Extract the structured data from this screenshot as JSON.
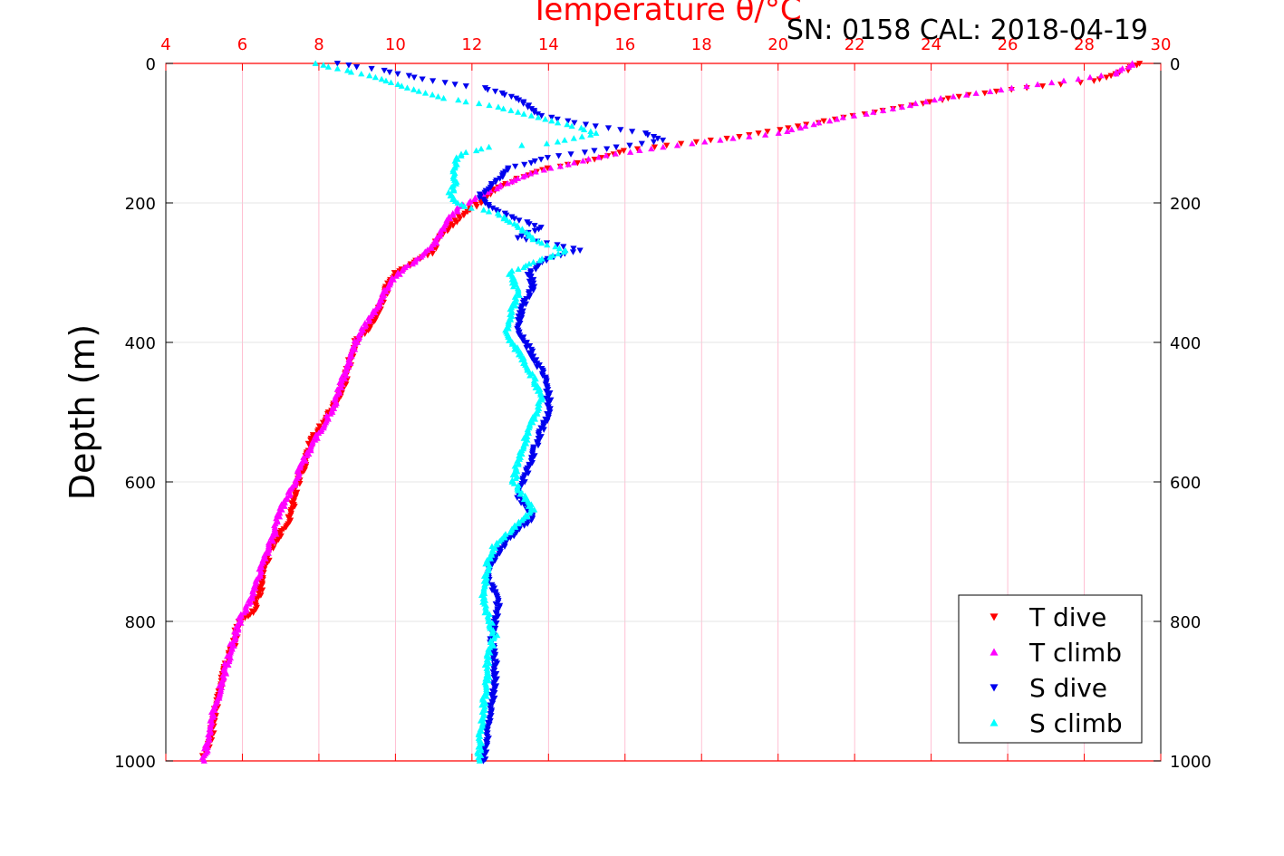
{
  "title": "Temperature θ/°C",
  "subtitle": "SN: 0158  CAL: 2018-04-19",
  "ylabel": "Depth (m)",
  "colors": {
    "axis_top": "#ff0000",
    "grid": "#dddddd",
    "grid_top": "#ffb0c8"
  },
  "chart_data": {
    "type": "scatter",
    "title": "Temperature θ/°C",
    "xlabel": "",
    "ylabel": "Depth (m)",
    "xlim": [
      4,
      30
    ],
    "ylim": [
      1000,
      0
    ],
    "x_ticks": [
      "4",
      "6",
      "8",
      "10",
      "12",
      "14",
      "16",
      "18",
      "20",
      "22",
      "24",
      "26",
      "28",
      "30"
    ],
    "y_ticks": [
      "0",
      "200",
      "400",
      "600",
      "800",
      "1000"
    ],
    "grid": true,
    "legend_position": "bottom-right",
    "series": [
      {
        "name": "T dive",
        "color": "#ff0000",
        "marker": "triangle-down",
        "points": [
          [
            29.4,
            0
          ],
          [
            29.1,
            10
          ],
          [
            28.3,
            25
          ],
          [
            26.5,
            35
          ],
          [
            25.0,
            45
          ],
          [
            23.5,
            60
          ],
          [
            22.0,
            75
          ],
          [
            20.5,
            90
          ],
          [
            19.0,
            105
          ],
          [
            17.5,
            115
          ],
          [
            16.0,
            125
          ],
          [
            15.0,
            140
          ],
          [
            14.0,
            150
          ],
          [
            13.2,
            165
          ],
          [
            12.6,
            180
          ],
          [
            12.2,
            200
          ],
          [
            11.8,
            215
          ],
          [
            11.4,
            235
          ],
          [
            11.1,
            255
          ],
          [
            11.0,
            270
          ],
          [
            10.5,
            285
          ],
          [
            10.0,
            300
          ],
          [
            9.8,
            320
          ],
          [
            9.6,
            350
          ],
          [
            9.3,
            380
          ],
          [
            9.0,
            395
          ],
          [
            8.8,
            430
          ],
          [
            8.6,
            470
          ],
          [
            8.2,
            510
          ],
          [
            7.8,
            540
          ],
          [
            7.6,
            580
          ],
          [
            7.4,
            610
          ],
          [
            7.3,
            640
          ],
          [
            7.2,
            660
          ],
          [
            6.8,
            690
          ],
          [
            6.6,
            720
          ],
          [
            6.5,
            750
          ],
          [
            6.3,
            785
          ],
          [
            5.9,
            800
          ],
          [
            5.8,
            830
          ],
          [
            5.6,
            860
          ],
          [
            5.4,
            900
          ],
          [
            5.3,
            930
          ],
          [
            5.2,
            960
          ],
          [
            5.0,
            995
          ]
        ]
      },
      {
        "name": "T climb",
        "color": "#ff00ff",
        "marker": "triangle-up",
        "points": [
          [
            29.3,
            0
          ],
          [
            28.8,
            15
          ],
          [
            27.5,
            25
          ],
          [
            25.8,
            38
          ],
          [
            24.3,
            50
          ],
          [
            23.0,
            65
          ],
          [
            21.5,
            80
          ],
          [
            20.0,
            100
          ],
          [
            18.5,
            110
          ],
          [
            17.0,
            120
          ],
          [
            15.5,
            132
          ],
          [
            14.5,
            145
          ],
          [
            13.5,
            158
          ],
          [
            12.9,
            172
          ],
          [
            12.2,
            190
          ],
          [
            11.7,
            205
          ],
          [
            11.3,
            230
          ],
          [
            11.0,
            260
          ],
          [
            10.6,
            280
          ],
          [
            10.0,
            305
          ],
          [
            9.7,
            330
          ],
          [
            9.4,
            360
          ],
          [
            9.0,
            395
          ],
          [
            8.7,
            440
          ],
          [
            8.4,
            490
          ],
          [
            8.0,
            530
          ],
          [
            7.6,
            570
          ],
          [
            7.3,
            610
          ],
          [
            7.0,
            640
          ],
          [
            6.8,
            680
          ],
          [
            6.5,
            720
          ],
          [
            6.3,
            760
          ],
          [
            6.0,
            790
          ],
          [
            5.8,
            820
          ],
          [
            5.6,
            860
          ],
          [
            5.4,
            900
          ],
          [
            5.2,
            940
          ],
          [
            5.0,
            1000
          ]
        ]
      },
      {
        "name": "S dive",
        "color": "#0000ee",
        "marker": "triangle-down",
        "points": [
          [
            8.5,
            0
          ],
          [
            9.0,
            5
          ],
          [
            9.7,
            10
          ],
          [
            10.5,
            20
          ],
          [
            11.5,
            30
          ],
          [
            12.3,
            35
          ],
          [
            13.2,
            50
          ],
          [
            13.8,
            75
          ],
          [
            15.2,
            90
          ],
          [
            16.5,
            100
          ],
          [
            17.0,
            110
          ],
          [
            15.8,
            120
          ],
          [
            14.0,
            135
          ],
          [
            13.0,
            150
          ],
          [
            12.6,
            170
          ],
          [
            12.2,
            190
          ],
          [
            12.5,
            205
          ],
          [
            13.0,
            220
          ],
          [
            13.8,
            235
          ],
          [
            13.2,
            250
          ],
          [
            14.2,
            260
          ],
          [
            14.8,
            268
          ],
          [
            14.0,
            280
          ],
          [
            13.5,
            300
          ],
          [
            13.6,
            320
          ],
          [
            13.3,
            350
          ],
          [
            13.2,
            380
          ],
          [
            13.5,
            410
          ],
          [
            13.8,
            440
          ],
          [
            14.0,
            470
          ],
          [
            14.0,
            500
          ],
          [
            13.8,
            530
          ],
          [
            13.6,
            560
          ],
          [
            13.4,
            590
          ],
          [
            13.2,
            620
          ],
          [
            13.6,
            650
          ],
          [
            13.0,
            680
          ],
          [
            12.6,
            710
          ],
          [
            12.4,
            740
          ],
          [
            12.7,
            770
          ],
          [
            12.6,
            800
          ],
          [
            12.5,
            830
          ],
          [
            12.6,
            860
          ],
          [
            12.6,
            890
          ],
          [
            12.5,
            920
          ],
          [
            12.4,
            960
          ],
          [
            12.3,
            1000
          ]
        ]
      },
      {
        "name": "S climb",
        "color": "#00ffff",
        "marker": "triangle-up",
        "points": [
          [
            7.9,
            0
          ],
          [
            8.7,
            10
          ],
          [
            9.5,
            20
          ],
          [
            10.3,
            35
          ],
          [
            11.3,
            50
          ],
          [
            12.5,
            60
          ],
          [
            13.5,
            75
          ],
          [
            14.3,
            85
          ],
          [
            15.3,
            100
          ],
          [
            14.0,
            115
          ],
          [
            12.5,
            120
          ],
          [
            11.7,
            130
          ],
          [
            11.5,
            150
          ],
          [
            11.6,
            170
          ],
          [
            11.4,
            190
          ],
          [
            11.8,
            205
          ],
          [
            12.7,
            215
          ],
          [
            13.2,
            235
          ],
          [
            13.7,
            255
          ],
          [
            14.5,
            268
          ],
          [
            13.6,
            285
          ],
          [
            13.0,
            300
          ],
          [
            13.2,
            330
          ],
          [
            13.0,
            360
          ],
          [
            12.9,
            390
          ],
          [
            13.3,
            420
          ],
          [
            13.6,
            450
          ],
          [
            13.8,
            480
          ],
          [
            13.6,
            510
          ],
          [
            13.4,
            540
          ],
          [
            13.2,
            570
          ],
          [
            13.1,
            600
          ],
          [
            13.6,
            640
          ],
          [
            13.2,
            660
          ],
          [
            12.6,
            690
          ],
          [
            12.4,
            720
          ],
          [
            12.3,
            760
          ],
          [
            12.4,
            790
          ],
          [
            12.6,
            820
          ],
          [
            12.4,
            850
          ],
          [
            12.4,
            880
          ],
          [
            12.3,
            920
          ],
          [
            12.2,
            960
          ],
          [
            12.2,
            1000
          ]
        ]
      }
    ]
  }
}
